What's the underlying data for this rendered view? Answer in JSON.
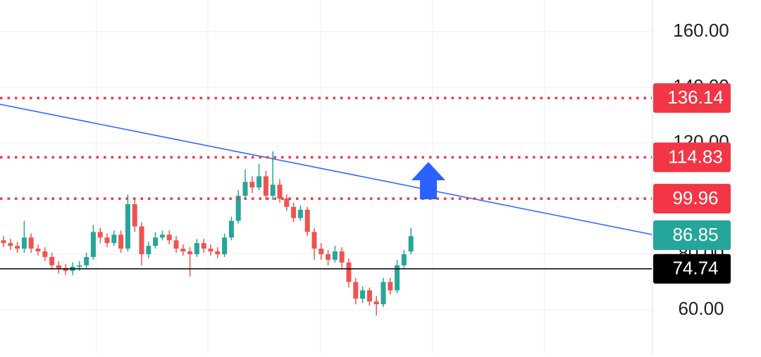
{
  "chart_data": {
    "type": "candlestick",
    "ylim": [
      44.3,
      171.4
    ],
    "yticks": [
      {
        "value": 160,
        "label": "160.00"
      },
      {
        "value": 140,
        "label": "140.00"
      },
      {
        "value": 120,
        "label": "120.00"
      },
      {
        "value": 100,
        "label": "100.00"
      },
      {
        "value": 80,
        "label": "80.00"
      },
      {
        "value": 60,
        "label": "60.00"
      }
    ],
    "grid": true,
    "up_color": "#26a69a",
    "down_color": "#ef5350",
    "open": [
      85,
      84,
      83,
      82,
      86,
      82,
      81,
      79,
      76,
      75,
      74,
      75.5,
      76,
      79,
      88,
      86,
      84,
      87,
      82,
      98,
      90,
      80,
      83,
      86,
      87,
      85,
      82,
      81,
      80,
      84,
      82,
      81,
      80,
      86,
      92,
      101,
      106,
      104,
      108,
      101,
      105,
      100,
      97,
      93,
      96,
      88,
      82,
      80,
      78,
      81,
      77,
      70,
      64,
      67,
      63,
      62,
      70,
      67,
      76,
      81
    ],
    "high": [
      86.5,
      85.5,
      84.5,
      92,
      87.5,
      83.5,
      82.5,
      80.5,
      77.5,
      76.5,
      77,
      77.5,
      80.5,
      90.5,
      89.5,
      87.5,
      88.5,
      88.5,
      101.5,
      99.5,
      91.5,
      84.5,
      88,
      88.5,
      88.5,
      86.5,
      83.5,
      82.5,
      85.5,
      85.5,
      83.5,
      82.5,
      87.5,
      93.5,
      103,
      110.5,
      108,
      112.5,
      110,
      117,
      107,
      101.5,
      98.5,
      97.5,
      97,
      89.5,
      84,
      81.5,
      83,
      82.5,
      78.5,
      71.5,
      68.5,
      68,
      65,
      71.5,
      71.5,
      78,
      81.5,
      89.5
    ],
    "low": [
      82.5,
      81.5,
      80.5,
      80.5,
      80.5,
      79.5,
      77.5,
      74.5,
      73,
      72.5,
      72.5,
      74,
      75,
      78,
      84,
      82.5,
      83,
      80.5,
      81,
      88,
      76,
      78.5,
      82,
      85,
      83.5,
      80.5,
      79.5,
      72,
      79,
      80.5,
      79.5,
      78.5,
      79,
      85,
      91,
      100,
      102,
      103,
      99.5,
      99.5,
      98.5,
      95.5,
      91.5,
      92,
      86.5,
      78,
      78,
      76,
      77,
      75,
      68,
      62,
      62.5,
      61.5,
      58,
      61,
      65.5,
      66,
      75,
      80
    ],
    "close": [
      84,
      83,
      82,
      86,
      82,
      81,
      79,
      76,
      75,
      74,
      75.5,
      76,
      79,
      88,
      86,
      84,
      87,
      82,
      98,
      90,
      80,
      83,
      86,
      87,
      85,
      82,
      81,
      80,
      84,
      82,
      81,
      80,
      86,
      92,
      101,
      106,
      104,
      108,
      101,
      105,
      100,
      97,
      93,
      96,
      88,
      82,
      80,
      78,
      81,
      77,
      70,
      64,
      67,
      63,
      62,
      70,
      67,
      76,
      80,
      86.5
    ],
    "trendline": {
      "values": [
        133.9,
        87.1
      ],
      "color": "#2962ff"
    },
    "price_lines": [
      {
        "value": 136.14,
        "color": "#f23645",
        "style": "dotted"
      },
      {
        "value": 114.83,
        "color": "#f23645",
        "style": "dotted"
      },
      {
        "value": 99.96,
        "color": "#f23645",
        "style": "dotted"
      },
      {
        "value": 86.85,
        "color": "#26a69a",
        "style": "none"
      },
      {
        "value": 74.74,
        "color": "#000000",
        "style": "solid"
      }
    ]
  }
}
